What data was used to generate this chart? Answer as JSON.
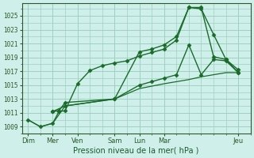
{
  "background_color": "#cff0ea",
  "grid_color": "#9ecfbf",
  "line_color": "#1a6b2a",
  "title": "Pression niveau de la mer( hPa )",
  "ylabel_ticks": [
    1009,
    1011,
    1013,
    1015,
    1017,
    1019,
    1021,
    1023,
    1025
  ],
  "xlabels": [
    "Dim",
    "Mer",
    "Ven",
    "Sam",
    "Lun",
    "Mar",
    "Jeu"
  ],
  "xlabels_x": [
    0,
    2,
    4,
    7,
    9,
    11,
    17
  ],
  "series": [
    {
      "x": [
        0,
        1,
        2,
        2.5,
        3,
        4,
        5,
        6,
        7,
        8,
        9,
        10,
        11,
        12,
        13,
        14,
        15,
        16,
        17
      ],
      "y": [
        1010,
        1009,
        1009.5,
        1011.2,
        1011.3,
        1015.2,
        1017.1,
        1017.8,
        1018.2,
        1018.5,
        1019.2,
        1019.7,
        1020.2,
        1021.5,
        1026.2,
        1026.2,
        1019.1,
        1018.7,
        1017.2
      ],
      "style": "-",
      "marker": "D",
      "markersize": 2.5,
      "linewidth": 1.0
    },
    {
      "x": [
        2,
        2.5,
        3,
        7,
        9,
        10,
        11,
        12,
        13,
        14,
        15,
        16,
        17
      ],
      "y": [
        1011.2,
        1011.3,
        1012.5,
        1013.0,
        1019.8,
        1020.2,
        1020.8,
        1022.0,
        1026.2,
        1026.0,
        1022.3,
        1018.7,
        1016.8
      ],
      "style": "-",
      "marker": "D",
      "markersize": 2.5,
      "linewidth": 1.0
    },
    {
      "x": [
        2,
        3,
        7,
        9,
        10,
        11,
        12,
        13,
        14,
        15,
        16,
        17
      ],
      "y": [
        1011.2,
        1012.0,
        1013.0,
        1015.0,
        1015.5,
        1016.0,
        1016.5,
        1020.8,
        1016.5,
        1018.7,
        1018.5,
        1016.8
      ],
      "style": "-",
      "marker": "D",
      "markersize": 2.5,
      "linewidth": 1.0
    },
    {
      "x": [
        0,
        1,
        2,
        3,
        7,
        9,
        11,
        13,
        14,
        15,
        16,
        17
      ],
      "y": [
        1010,
        1009,
        1009.5,
        1012.0,
        1013.0,
        1014.5,
        1015.2,
        1015.8,
        1016.2,
        1016.5,
        1016.8,
        1016.8
      ],
      "style": "-",
      "marker": null,
      "markersize": 0,
      "linewidth": 0.9
    }
  ],
  "xlim": [
    -0.5,
    18
  ],
  "ylim": [
    1008,
    1026.8
  ],
  "figsize": [
    3.2,
    2.0
  ],
  "dpi": 100
}
